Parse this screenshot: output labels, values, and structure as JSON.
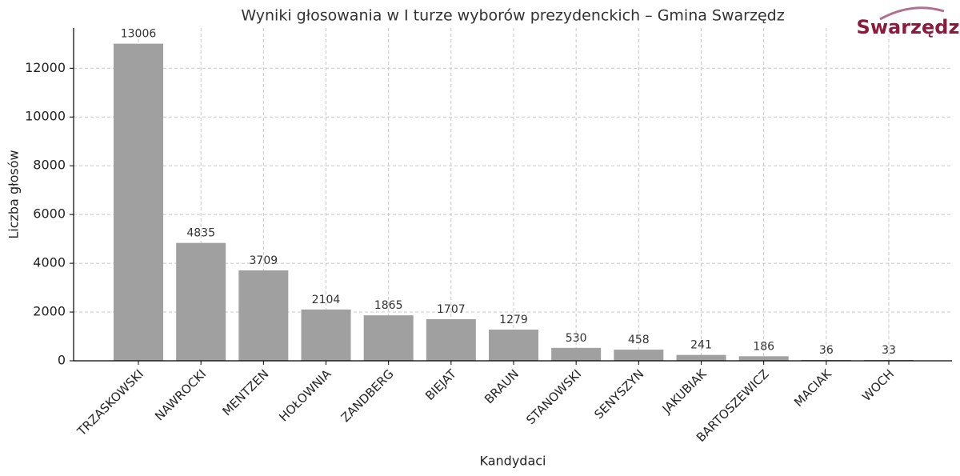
{
  "logo": "Swarzędz",
  "chart_data": {
    "type": "bar",
    "title": "Wyniki głosowania w I turze wyborów prezydenckich – Gmina Swarzędz",
    "x_label": "Kandydaci",
    "y_label": "Liczba głosów",
    "categories": [
      "TRZASKOWSKI",
      "NAWROCKI",
      "MENTZEN",
      "HOŁOWNIA",
      "ZANDBERG",
      "BIEJAT",
      "BRAUN",
      "STANOWSKI",
      "SENYSZYN",
      "JAKUBIAK",
      "BARTOSZEWICZ",
      "MACIAK",
      "WOCH"
    ],
    "values": [
      13006,
      4835,
      3709,
      2104,
      1865,
      1707,
      1279,
      530,
      458,
      241,
      186,
      36,
      33
    ],
    "color": "#a0a0a0",
    "ylim": [
      0,
      13650
    ],
    "yticks": [
      0,
      2000,
      4000,
      6000,
      8000,
      10000,
      12000
    ],
    "grid": true
  }
}
